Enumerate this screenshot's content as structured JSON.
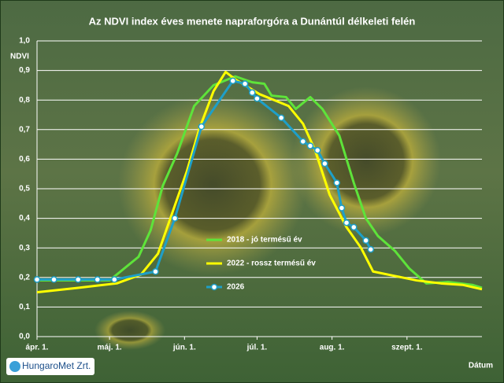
{
  "chart_data": {
    "type": "line",
    "title": "Az NDVI index éves menete napraforgóra a Dunántúl délkeleti felén",
    "y_label": "NDVI",
    "x_label": "Dátum",
    "logo": "HungaroMet Zrt.",
    "xlim": [
      0,
      184
    ],
    "xticks": [
      {
        "value": 0,
        "label": "ápr. 1."
      },
      {
        "value": 30,
        "label": "máj. 1."
      },
      {
        "value": 61,
        "label": "jún. 1."
      },
      {
        "value": 91,
        "label": "júl. 1."
      },
      {
        "value": 122,
        "label": "aug. 1."
      },
      {
        "value": 153,
        "label": "szept. 1."
      }
    ],
    "ylim": [
      0,
      1
    ],
    "yticks": [
      {
        "value": 0,
        "label": "0,0"
      },
      {
        "value": 0.1,
        "label": "0,1"
      },
      {
        "value": 0.2,
        "label": "0,2"
      },
      {
        "value": 0.3,
        "label": "0,3"
      },
      {
        "value": 0.4,
        "label": "0,4"
      },
      {
        "value": 0.5,
        "label": "0,5"
      },
      {
        "value": 0.6,
        "label": "0,6"
      },
      {
        "value": 0.7,
        "label": "0,7"
      },
      {
        "value": 0.8,
        "label": "0,8"
      },
      {
        "value": 0.9,
        "label": "0,9"
      },
      {
        "value": 1,
        "label": "1,0"
      }
    ],
    "grid": true,
    "legend": "lower-center",
    "series": [
      {
        "name": "2018 - jó termésű év",
        "color": "#5ee33a",
        "markers": false,
        "x": [
          0,
          30,
          42,
          47,
          52,
          58,
          65,
          73,
          82,
          89,
          94,
          97,
          103,
          107,
          113,
          118,
          125,
          131,
          136,
          141,
          148,
          154,
          161,
          170,
          180,
          184
        ],
        "values": [
          0.19,
          0.19,
          0.27,
          0.36,
          0.51,
          0.62,
          0.78,
          0.85,
          0.88,
          0.86,
          0.855,
          0.815,
          0.81,
          0.77,
          0.81,
          0.77,
          0.68,
          0.52,
          0.4,
          0.34,
          0.29,
          0.23,
          0.18,
          0.185,
          0.175,
          0.165
        ]
      },
      {
        "name": "2022 - rossz termésű év",
        "color": "#ffff00",
        "markers": false,
        "x": [
          0,
          17,
          33,
          43,
          50,
          56,
          62,
          67,
          73,
          78,
          82,
          92,
          104,
          110,
          115,
          121,
          128,
          134,
          139,
          148,
          157,
          167,
          176,
          184
        ],
        "values": [
          0.15,
          0.165,
          0.18,
          0.21,
          0.28,
          0.42,
          0.56,
          0.7,
          0.83,
          0.895,
          0.87,
          0.82,
          0.78,
          0.72,
          0.63,
          0.48,
          0.37,
          0.3,
          0.22,
          0.205,
          0.19,
          0.18,
          0.175,
          0.16
        ]
      },
      {
        "name": "2026",
        "color": "#1e9fc8",
        "markers": true,
        "x": [
          0,
          7,
          17,
          25,
          32,
          49,
          57,
          68,
          81,
          86,
          89,
          91,
          101,
          110,
          113,
          116,
          119,
          124,
          126,
          128,
          131,
          136,
          138
        ],
        "values": [
          0.193,
          0.193,
          0.193,
          0.193,
          0.193,
          0.22,
          0.4,
          0.71,
          0.865,
          0.855,
          0.825,
          0.805,
          0.74,
          0.66,
          0.645,
          0.63,
          0.585,
          0.52,
          0.435,
          0.385,
          0.37,
          0.325,
          0.295
        ]
      }
    ]
  }
}
